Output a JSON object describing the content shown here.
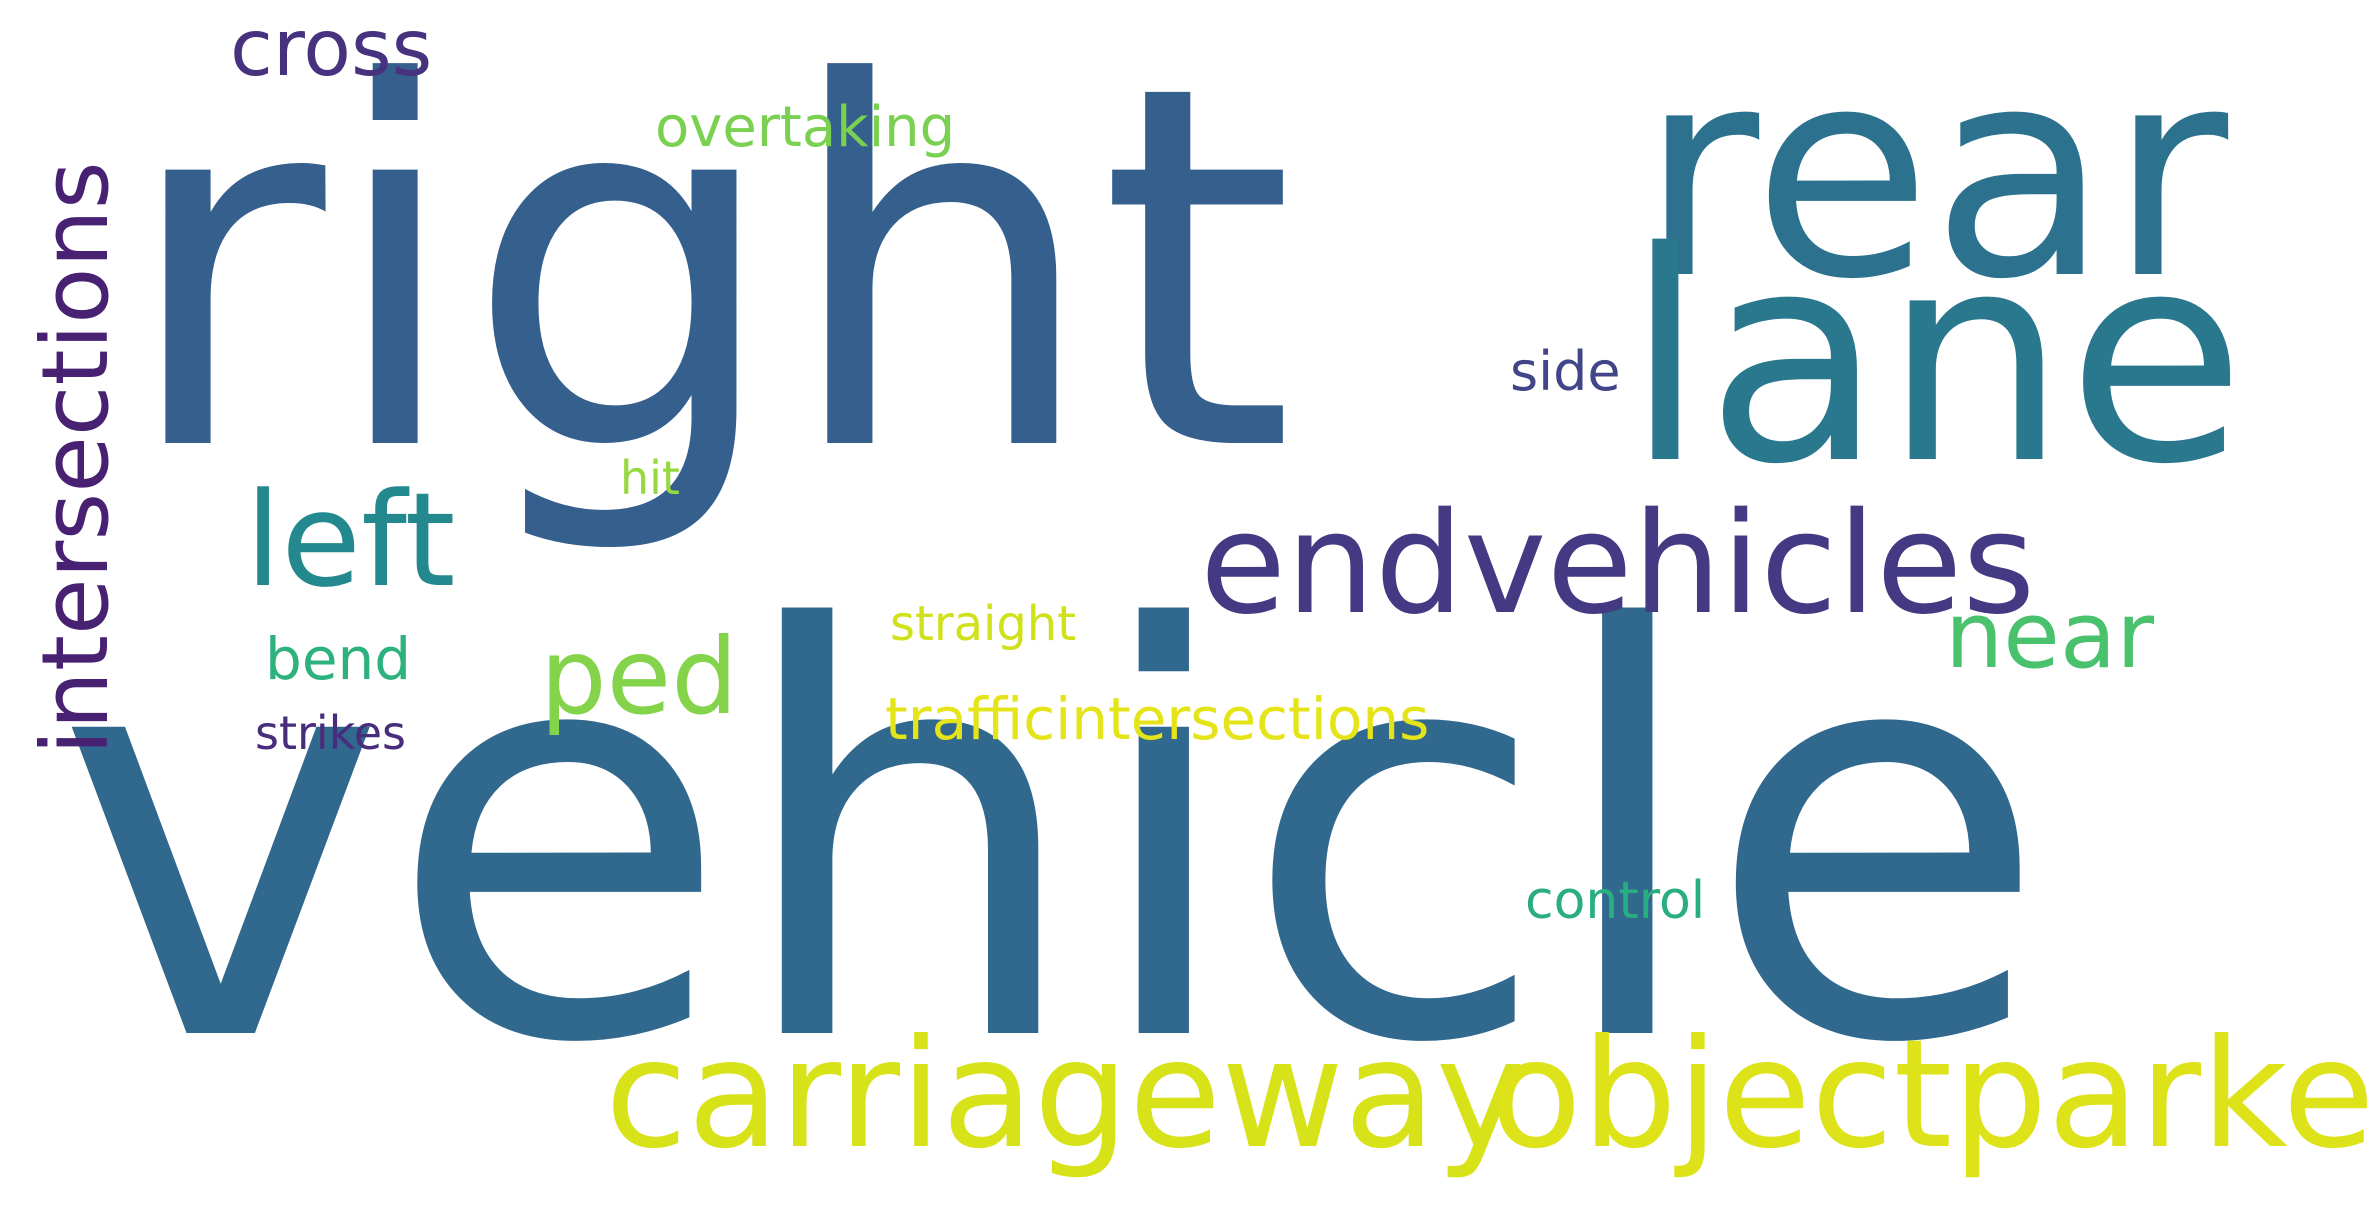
{
  "words": [
    {
      "text": "vehicle",
      "color": "#31688e"
    },
    {
      "text": "right",
      "color": "#355f8d"
    },
    {
      "text": "rear",
      "color": "#2c728e"
    },
    {
      "text": "lane",
      "color": "#2a788e"
    },
    {
      "text": "endvehicles",
      "color": "#443983"
    },
    {
      "text": "carriageway",
      "color": "#d8e219"
    },
    {
      "text": "objectparked",
      "color": "#dde318"
    },
    {
      "text": "left",
      "color": "#23898e"
    },
    {
      "text": "intersections",
      "color": "#482173"
    },
    {
      "text": "cross",
      "color": "#46327e"
    },
    {
      "text": "overtaking",
      "color": "#7ad151"
    },
    {
      "text": "side",
      "color": "#404688"
    },
    {
      "text": "hit",
      "color": "#95d840"
    },
    {
      "text": "ped",
      "color": "#84d44b"
    },
    {
      "text": "near",
      "color": "#4ac16d"
    },
    {
      "text": "straight",
      "color": "#d0e11c"
    },
    {
      "text": "bend",
      "color": "#2db27d"
    },
    {
      "text": "trafficintersections",
      "color": "#e5e419"
    },
    {
      "text": "strikes",
      "color": "#472d7b"
    },
    {
      "text": "control",
      "color": "#28ae80"
    }
  ]
}
